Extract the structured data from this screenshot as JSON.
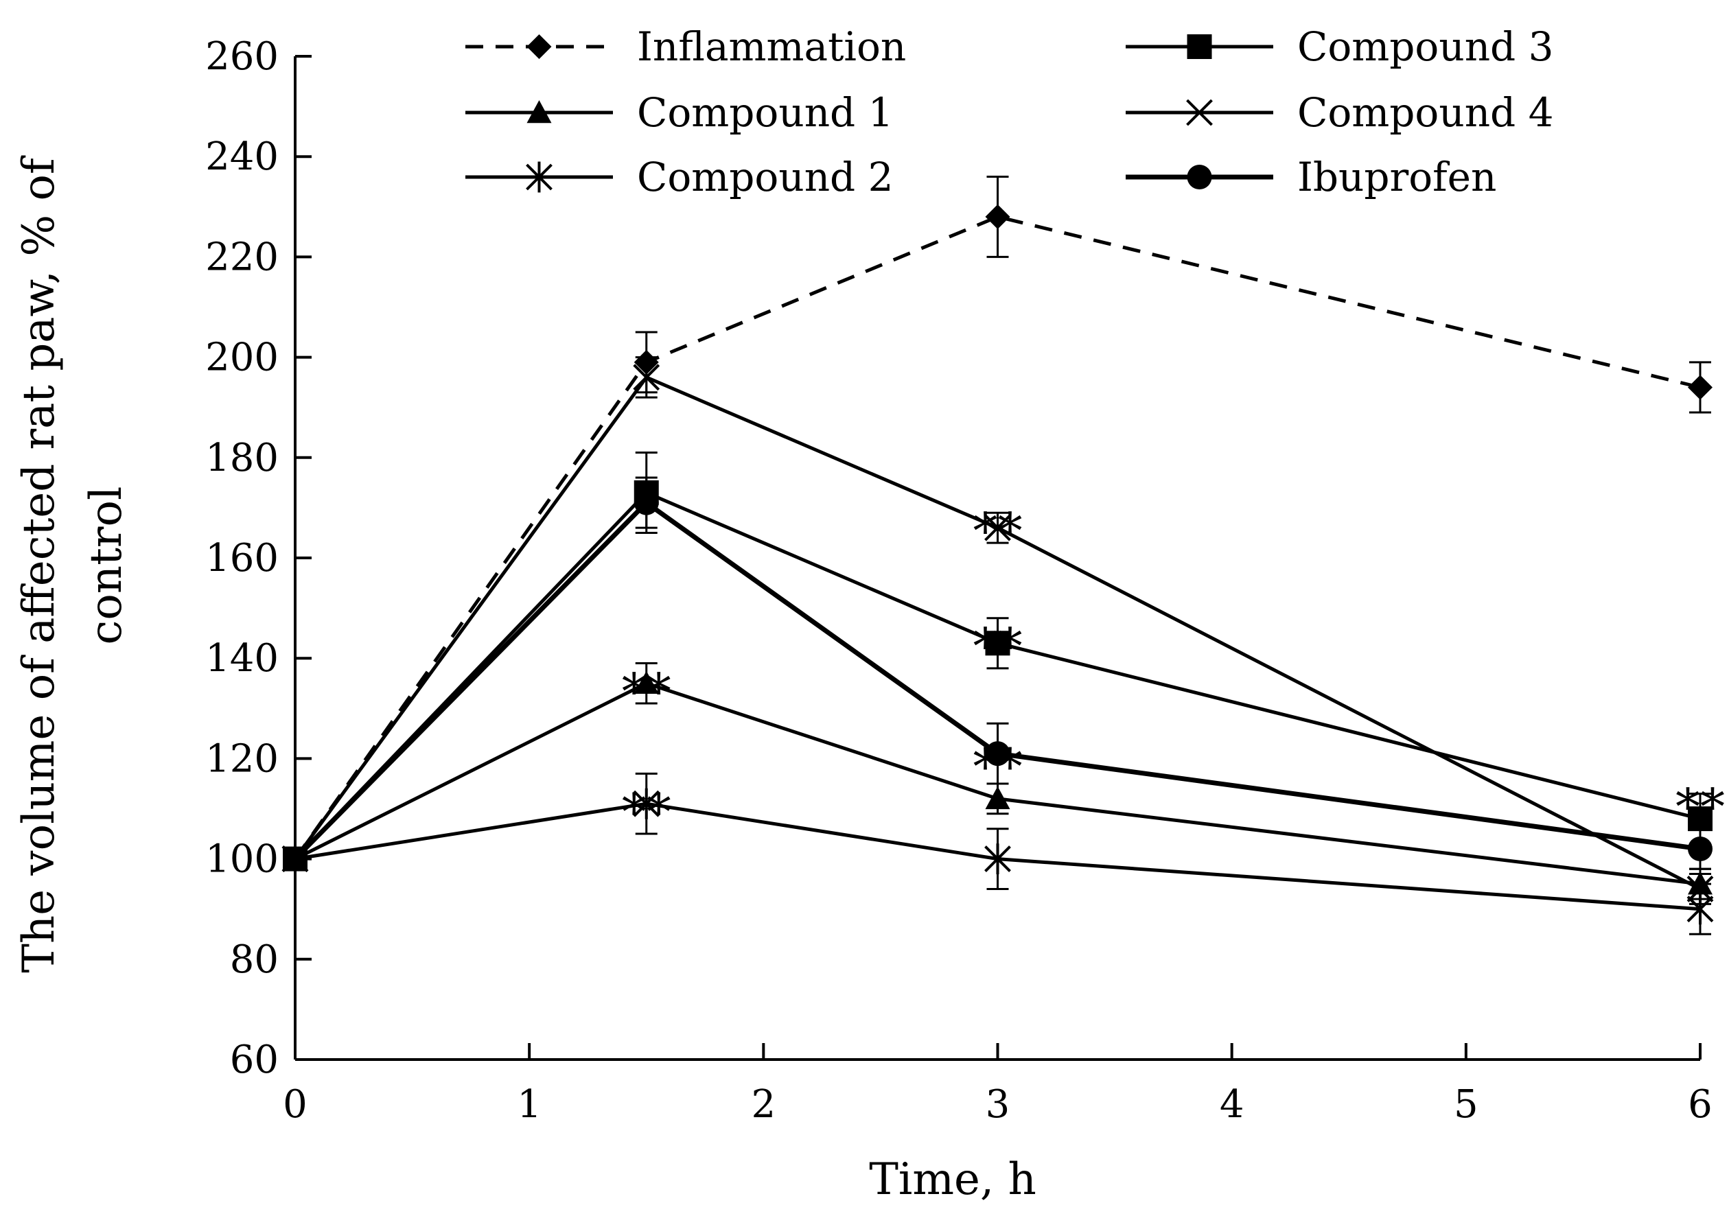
{
  "chart_data": {
    "type": "line",
    "title": "",
    "xlabel": "Time, h",
    "ylabel_lines": [
      "The volume of affected rat paw, % of",
      "control"
    ],
    "xlim": [
      0,
      6
    ],
    "ylim": [
      60,
      260
    ],
    "xticks": [
      "0",
      "1",
      "2",
      "3",
      "4",
      "5",
      "6"
    ],
    "yticks": [
      "60",
      "80",
      "100",
      "120",
      "140",
      "160",
      "180",
      "200",
      "220",
      "240",
      "260"
    ],
    "grid": false,
    "legend_position": "top",
    "series": [
      {
        "name": "Inflammation",
        "marker": "diamond",
        "dashed": true,
        "thick": false,
        "x": [
          0,
          1.5,
          3,
          6
        ],
        "y": [
          100,
          199,
          228,
          194
        ],
        "err": [
          0,
          6,
          8,
          5
        ]
      },
      {
        "name": "Compound 1",
        "marker": "triangle",
        "dashed": false,
        "thick": false,
        "x": [
          0,
          1.5,
          3,
          6
        ],
        "y": [
          100,
          135,
          112,
          95
        ],
        "err": [
          0,
          4,
          3,
          3
        ]
      },
      {
        "name": "Compound 2",
        "marker": "asterisk",
        "dashed": false,
        "thick": false,
        "x": [
          0,
          1.5,
          3,
          6
        ],
        "y": [
          100,
          111,
          100,
          90
        ],
        "err": [
          0,
          6,
          6,
          5
        ]
      },
      {
        "name": "Compound 3",
        "marker": "square",
        "dashed": false,
        "thick": false,
        "x": [
          0,
          1.5,
          3,
          6
        ],
        "y": [
          100,
          173,
          143,
          108
        ],
        "err": [
          0,
          8,
          5,
          5
        ]
      },
      {
        "name": "Compound 4",
        "marker": "x",
        "dashed": false,
        "thick": false,
        "x": [
          0,
          1.5,
          3,
          6
        ],
        "y": [
          100,
          196,
          166,
          94
        ],
        "err": [
          0,
          4,
          3,
          3
        ]
      },
      {
        "name": "Ibuprofen",
        "marker": "circle",
        "dashed": false,
        "thick": true,
        "x": [
          0,
          1.5,
          3,
          6
        ],
        "y": [
          100,
          171,
          121,
          102
        ],
        "err": [
          0,
          5,
          6,
          4
        ]
      }
    ],
    "annotations": [
      {
        "text": "**",
        "x": 1.5,
        "y": 136
      },
      {
        "text": "**",
        "x": 1.5,
        "y": 112
      },
      {
        "text": "**",
        "x": 3,
        "y": 168
      },
      {
        "text": "**",
        "x": 3,
        "y": 145
      },
      {
        "text": "**",
        "x": 3,
        "y": 121
      },
      {
        "text": "**",
        "x": 6,
        "y": 113
      }
    ]
  }
}
